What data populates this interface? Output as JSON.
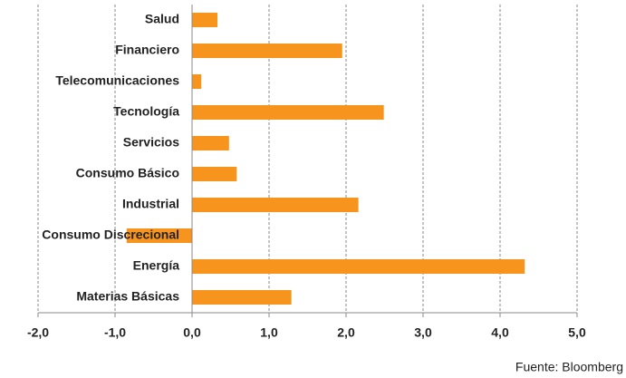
{
  "chart_data": {
    "type": "barh",
    "categories": [
      "Salud",
      "Financiero",
      "Telecomunicaciones",
      "Tecnología",
      "Servicios",
      "Consumo Básico",
      "Industrial",
      "Consumo Discrecional",
      "Energía",
      "Materias Básicas"
    ],
    "values": [
      0.33,
      1.95,
      0.12,
      2.49,
      0.48,
      0.58,
      2.16,
      -0.85,
      4.32,
      1.29
    ],
    "color": "#f7941d",
    "xlim": [
      -2,
      5
    ],
    "xticks": [
      {
        "value": -2,
        "label": "-2,0"
      },
      {
        "value": -1,
        "label": "-1,0"
      },
      {
        "value": 0,
        "label": "0,0"
      },
      {
        "value": 1,
        "label": "1,0"
      },
      {
        "value": 2,
        "label": "2,0"
      },
      {
        "value": 3,
        "label": "3,0"
      },
      {
        "value": 4,
        "label": "4,0"
      },
      {
        "value": 5,
        "label": "5,0"
      }
    ],
    "grid": true,
    "source": "Fuente: Bloomberg"
  }
}
